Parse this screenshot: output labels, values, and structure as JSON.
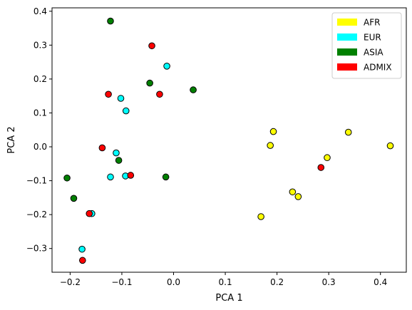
{
  "chart_data": {
    "type": "scatter",
    "title": "",
    "xlabel": "PCA 1",
    "ylabel": "PCA 2",
    "xlim": [
      -0.235,
      0.45
    ],
    "ylim": [
      -0.37,
      0.41
    ],
    "x_ticks": [
      -0.2,
      -0.1,
      0.0,
      0.1,
      0.2,
      0.3,
      0.4
    ],
    "x_tick_labels": [
      "−0.2",
      "−0.1",
      "0.0",
      "0.1",
      "0.2",
      "0.3",
      "0.4"
    ],
    "y_ticks": [
      -0.3,
      -0.2,
      -0.1,
      0.0,
      0.1,
      0.2,
      0.3,
      0.4
    ],
    "y_tick_labels": [
      "−0.3",
      "−0.2",
      "−0.1",
      "0.0",
      "0.1",
      "0.2",
      "0.3",
      "0.4"
    ],
    "grid": false,
    "legend_position": "top-right",
    "series": [
      {
        "name": "AFR",
        "color": "#ffff00",
        "points": [
          {
            "x": 0.193,
            "y": 0.045
          },
          {
            "x": 0.187,
            "y": 0.004
          },
          {
            "x": 0.338,
            "y": 0.043
          },
          {
            "x": 0.297,
            "y": -0.032
          },
          {
            "x": 0.419,
            "y": 0.003
          },
          {
            "x": 0.23,
            "y": -0.133
          },
          {
            "x": 0.241,
            "y": -0.147
          },
          {
            "x": 0.169,
            "y": -0.206
          }
        ]
      },
      {
        "name": "EUR",
        "color": "#00ffff",
        "points": [
          {
            "x": -0.013,
            "y": 0.238
          },
          {
            "x": -0.102,
            "y": 0.143
          },
          {
            "x": -0.092,
            "y": 0.106
          },
          {
            "x": -0.111,
            "y": -0.018
          },
          {
            "x": -0.122,
            "y": -0.089
          },
          {
            "x": -0.093,
            "y": -0.086
          },
          {
            "x": -0.158,
            "y": -0.197
          },
          {
            "x": -0.177,
            "y": -0.302
          }
        ]
      },
      {
        "name": "ASIA",
        "color": "#008000",
        "points": [
          {
            "x": -0.122,
            "y": 0.371
          },
          {
            "x": -0.046,
            "y": 0.188
          },
          {
            "x": 0.038,
            "y": 0.168
          },
          {
            "x": -0.106,
            "y": -0.04
          },
          {
            "x": -0.206,
            "y": -0.092
          },
          {
            "x": -0.015,
            "y": -0.089
          },
          {
            "x": -0.193,
            "y": -0.152
          }
        ]
      },
      {
        "name": "ADMIX",
        "color": "#ff0000",
        "points": [
          {
            "x": -0.042,
            "y": 0.298
          },
          {
            "x": -0.126,
            "y": 0.155
          },
          {
            "x": -0.027,
            "y": 0.155
          },
          {
            "x": -0.138,
            "y": -0.003
          },
          {
            "x": -0.083,
            "y": -0.084
          },
          {
            "x": 0.285,
            "y": -0.061
          },
          {
            "x": -0.163,
            "y": -0.197
          },
          {
            "x": -0.176,
            "y": -0.335
          }
        ]
      }
    ]
  }
}
